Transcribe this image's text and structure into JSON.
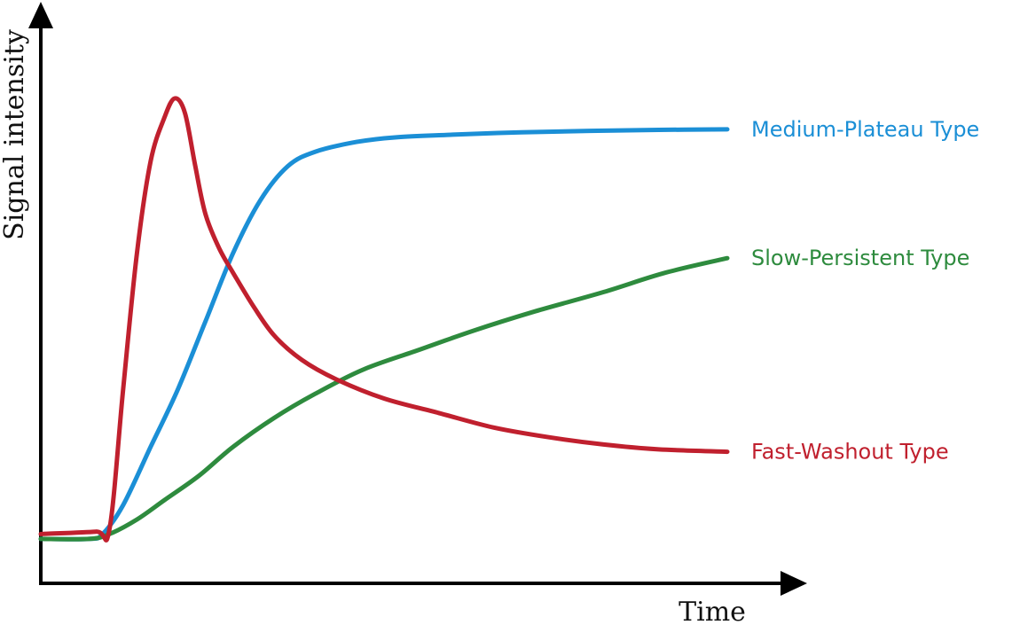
{
  "chart_data": {
    "type": "line",
    "xlabel": "Time",
    "ylabel": "Signal intensity",
    "xlim": [
      0,
      100
    ],
    "ylim": [
      0,
      100
    ],
    "grid": false,
    "legend": "right-end labels",
    "series": [
      {
        "name": "Medium-Plateau Type",
        "color": "#1b8fd6",
        "x": [
          0,
          7,
          9,
          12,
          16,
          20,
          24,
          28,
          32,
          36,
          40,
          46,
          52,
          60,
          70,
          80,
          90,
          100
        ],
        "y": [
          9,
          9,
          10,
          16,
          28,
          40,
          54,
          68,
          79,
          86,
          89,
          91,
          92,
          92.5,
          93,
          93.3,
          93.5,
          93.6
        ]
      },
      {
        "name": "Slow-Persistent Type",
        "color": "#2e8b3e",
        "x": [
          0,
          7,
          10,
          14,
          18,
          23,
          28,
          34,
          40,
          47,
          55,
          63,
          72,
          82,
          91,
          100
        ],
        "y": [
          9,
          9,
          10,
          13,
          17,
          22,
          28,
          34,
          39,
          44,
          48,
          52,
          56,
          60,
          64,
          67
        ]
      },
      {
        "name": "Fast-Washout Type",
        "color": "#c0202e",
        "x": [
          0,
          8,
          10,
          12,
          14,
          16,
          18,
          19.5,
          21,
          22.5,
          24,
          26,
          28,
          31,
          34,
          38,
          43,
          50,
          58,
          66,
          74,
          82,
          90,
          100
        ],
        "y": [
          10,
          10.5,
          11,
          40,
          68,
          87,
          96,
          100,
          97,
          86,
          76,
          69,
          64,
          57,
          51,
          46,
          42,
          38,
          35,
          32,
          30,
          28.5,
          27.5,
          27
        ]
      }
    ]
  }
}
